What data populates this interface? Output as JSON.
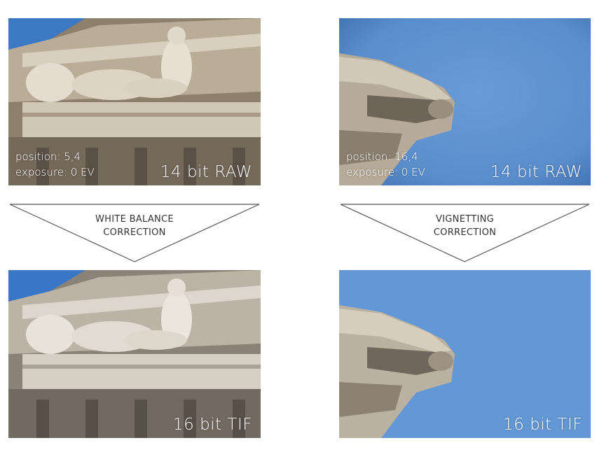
{
  "panels": {
    "top_left": {
      "position": "position: 5,4",
      "exposure": "exposure: 0 EV",
      "format": "14 bit RAW"
    },
    "top_right": {
      "position": "position: 16,4",
      "exposure": "exposure: 0 EV",
      "format": "14 bit RAW"
    },
    "bottom_left": {
      "format": "16 bit TIF"
    },
    "bottom_right": {
      "format": "16 bit TIF"
    }
  },
  "arrows": {
    "left": {
      "line1": "WHITE BALANCE",
      "line2": "CORRECTION"
    },
    "right": {
      "line1": "VIGNETTING",
      "line2": "CORRECTION"
    }
  },
  "colors": {
    "sky": "#5f93d2",
    "stone": "#c9bfae",
    "arrow_stroke": "#555555"
  }
}
